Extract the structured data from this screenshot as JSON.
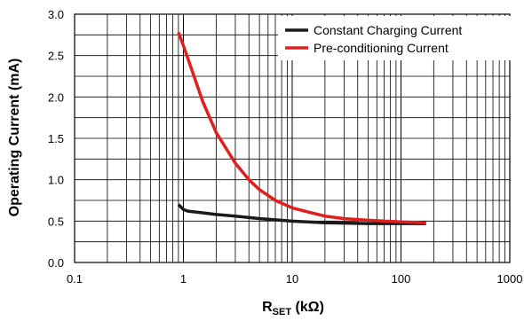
{
  "chart_data": {
    "type": "line",
    "xscale": "log",
    "xlim": [
      0.1,
      1000
    ],
    "ylim": [
      0,
      3.0
    ],
    "grid": true,
    "legend": "top-right",
    "ylabel": "Operating Current (mA)",
    "xlabel": {
      "main": "R",
      "sub": "SET",
      "unit": " (kΩ)"
    },
    "xticks": [
      {
        "value": 0.1,
        "label": "0.1"
      },
      {
        "value": 1,
        "label": "1"
      },
      {
        "value": 10,
        "label": "10"
      },
      {
        "value": 100,
        "label": "100"
      },
      {
        "value": 1000,
        "label": "1000"
      }
    ],
    "yticks": [
      {
        "value": 0,
        "label": "0.0"
      },
      {
        "value": 0.5,
        "label": "0.5"
      },
      {
        "value": 1.0,
        "label": "1.0"
      },
      {
        "value": 1.5,
        "label": "1.5"
      },
      {
        "value": 2.0,
        "label": "2.0"
      },
      {
        "value": 2.5,
        "label": "2.5"
      },
      {
        "value": 3.0,
        "label": "3.0"
      }
    ],
    "series": [
      {
        "name": "Constant Charging Current",
        "color": "#1a1a1a",
        "points": [
          [
            0.9,
            0.7
          ],
          [
            1.0,
            0.64
          ],
          [
            1.1,
            0.62
          ],
          [
            1.5,
            0.6
          ],
          [
            2,
            0.58
          ],
          [
            3,
            0.56
          ],
          [
            5,
            0.53
          ],
          [
            10,
            0.5
          ],
          [
            20,
            0.48
          ],
          [
            50,
            0.47
          ],
          [
            100,
            0.47
          ],
          [
            170,
            0.47
          ]
        ]
      },
      {
        "name": "Pre-conditioning Current",
        "color": "#e02020",
        "points": [
          [
            0.9,
            2.78
          ],
          [
            1.0,
            2.62
          ],
          [
            1.2,
            2.32
          ],
          [
            1.5,
            1.95
          ],
          [
            2,
            1.57
          ],
          [
            3,
            1.2
          ],
          [
            4,
            1.0
          ],
          [
            5,
            0.88
          ],
          [
            7,
            0.75
          ],
          [
            10,
            0.66
          ],
          [
            15,
            0.6
          ],
          [
            20,
            0.56
          ],
          [
            30,
            0.53
          ],
          [
            50,
            0.51
          ],
          [
            100,
            0.49
          ],
          [
            170,
            0.48
          ]
        ]
      }
    ]
  }
}
